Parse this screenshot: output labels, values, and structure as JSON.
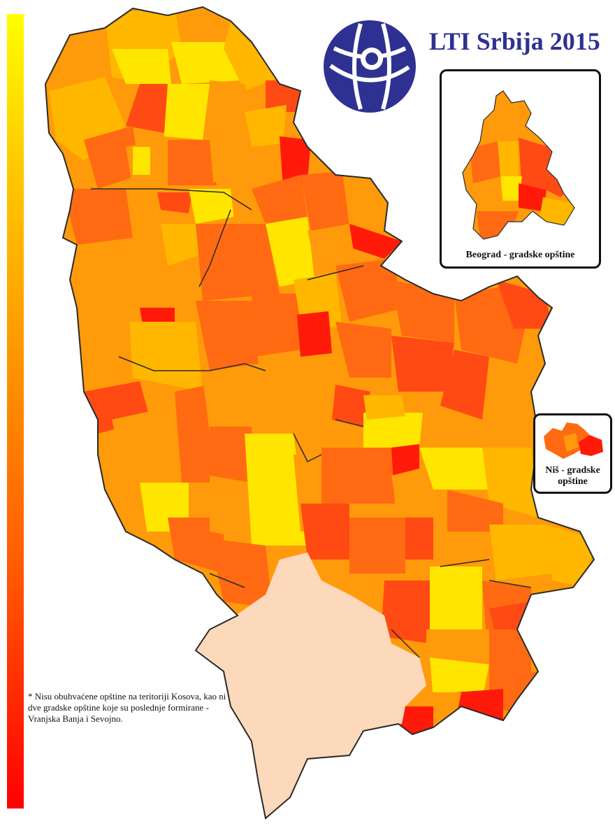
{
  "title": "LTI Srbija 2015",
  "legend": {
    "scale_colors": [
      "#ffff00",
      "#ffcc00",
      "#ff9900",
      "#ff5a00",
      "#ff0000"
    ],
    "direction": "top-yellow to bottom-red"
  },
  "colors": {
    "yellow": "#ffe600",
    "light_orange": "#ffb700",
    "orange": "#ff9a0a",
    "dark_orange": "#ff6a12",
    "red_orange": "#ff4a14",
    "red": "#ff1a0a",
    "kosovo": "#fcd9bb",
    "border": "#2a2a2a",
    "title": "#2e3192"
  },
  "logo": {
    "icon": "transparency-international-logo"
  },
  "insets": {
    "belgrade": {
      "label": "Beograd - gradske opštine"
    },
    "nis": {
      "label": "Niš - gradske opštine"
    }
  },
  "footnote": "* Nisu obuhvaćene opštine na teritoriji Kosova, kao ni dve gradske opštine koje su poslednje formirane - Vranjska Banja i Sevojno."
}
